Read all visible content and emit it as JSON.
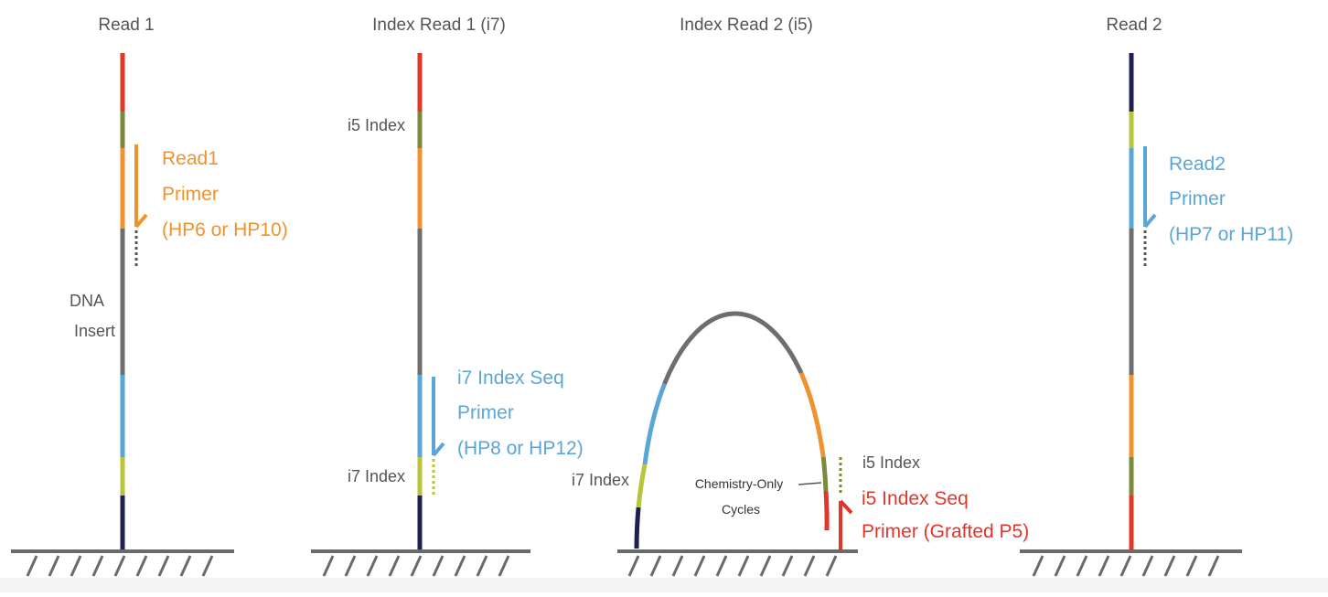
{
  "panels": {
    "read1": {
      "title": "Read 1",
      "primer": [
        "Read1",
        "Primer",
        "(HP6 or HP10)"
      ],
      "insert": [
        "DNA",
        "Insert"
      ]
    },
    "index_read1": {
      "title": "Index Read 1 (i7)",
      "i5_label": "i5 Index",
      "i7_label": "i7 Index",
      "primer": [
        "i7 Index Seq",
        "Primer",
        "(HP8 or HP12)"
      ]
    },
    "index_read2": {
      "title": "Index Read 2 (i5)",
      "i7_label": "i7 Index",
      "i5_label": "i5 Index",
      "cycles": [
        "Chemistry-Only",
        "Cycles"
      ],
      "primer": [
        "i5 Index Seq",
        "Primer (Grafted P5)"
      ]
    },
    "read2": {
      "title": "Read 2",
      "primer": [
        "Read2",
        "Primer",
        "(HP7 or HP11)"
      ]
    }
  },
  "colors": {
    "red": "#e0362b",
    "green": "#7a8a3a",
    "lime": "#b8c43a",
    "orange": "#f0922e",
    "gray": "#6e6e6e",
    "blue": "#5aa6d6",
    "navy": "#1c2150",
    "label_gray": "#555555",
    "surface": "#6a6a6a"
  }
}
